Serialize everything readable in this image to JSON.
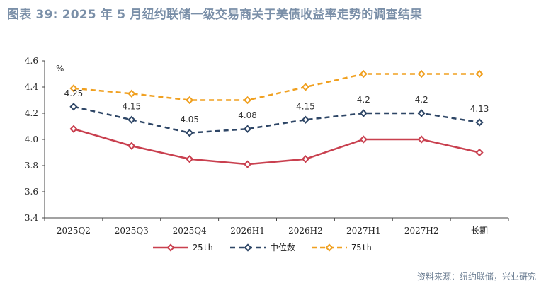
{
  "title": "图表 39: 2025 年 5 月纽约联储一级交易商关于美债收益率走势的调查结果",
  "source": "资料来源：纽约联储，兴业研究",
  "chart_data": {
    "type": "line",
    "categories": [
      "2025Q2",
      "2025Q3",
      "2025Q4",
      "2026H1",
      "2026H2",
      "2027H1",
      "2027H2",
      "长期"
    ],
    "ylim": [
      3.4,
      4.6
    ],
    "yticks": [
      "3.4",
      "3.6",
      "3.8",
      "4.0",
      "4.2",
      "4.4",
      "4.6"
    ],
    "unit": "%",
    "grid": false,
    "legend_position": "bottom",
    "series": [
      {
        "name": "25th",
        "values": [
          4.08,
          3.95,
          3.85,
          3.81,
          3.85,
          4.0,
          4.0,
          3.9
        ],
        "color": "#c9404f",
        "style": "solid",
        "labels": false
      },
      {
        "name": "中位数",
        "values": [
          4.25,
          4.15,
          4.05,
          4.08,
          4.15,
          4.2,
          4.2,
          4.13
        ],
        "color": "#2e4666",
        "style": "dashed",
        "labels": true,
        "label_texts": [
          "4.25",
          "4.15",
          "4.05",
          "4.08",
          "4.15",
          "4.2",
          "4.2",
          "4.13"
        ]
      },
      {
        "name": "75th",
        "values": [
          4.39,
          4.35,
          4.3,
          4.3,
          4.4,
          4.5,
          4.5,
          4.5
        ],
        "color": "#f0a020",
        "style": "dashed",
        "labels": false
      }
    ]
  }
}
